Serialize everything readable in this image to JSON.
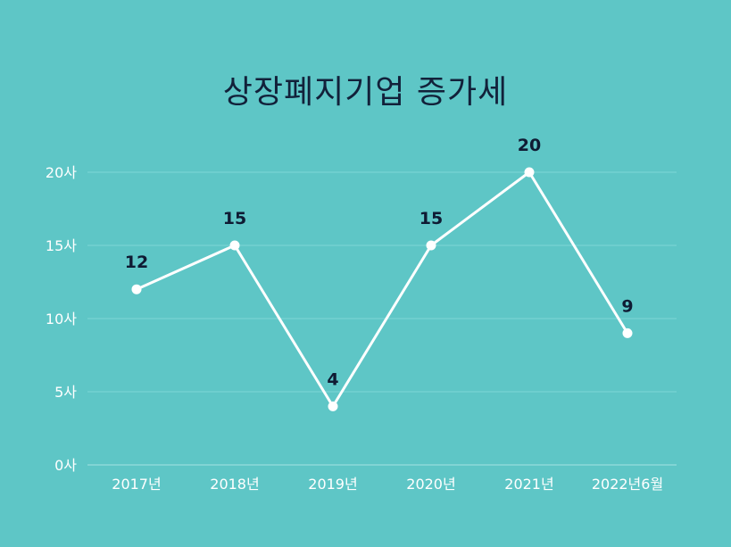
{
  "chart_data": {
    "type": "line",
    "title": "상장폐지기업 증가세",
    "categories": [
      "2017년",
      "2018년",
      "2019년",
      "2020년",
      "2021년",
      "2022년6월"
    ],
    "series": [
      {
        "values": [
          12,
          15,
          4,
          15,
          20,
          9
        ]
      }
    ],
    "ylim": [
      0,
      20
    ],
    "yticks": [
      0,
      5,
      10,
      15,
      20
    ],
    "ytick_suffix": "사",
    "xlabel": "",
    "ylabel": "",
    "grid": true,
    "data_labels": true,
    "colors": {
      "background": "#5EC6C6",
      "line": "#FFFFFF",
      "marker": "#FFFFFF",
      "gridline": "#7ED6D6",
      "title": "#12213A",
      "data_label": "#0F1B33",
      "tick_label": "#FFFFFF"
    }
  }
}
